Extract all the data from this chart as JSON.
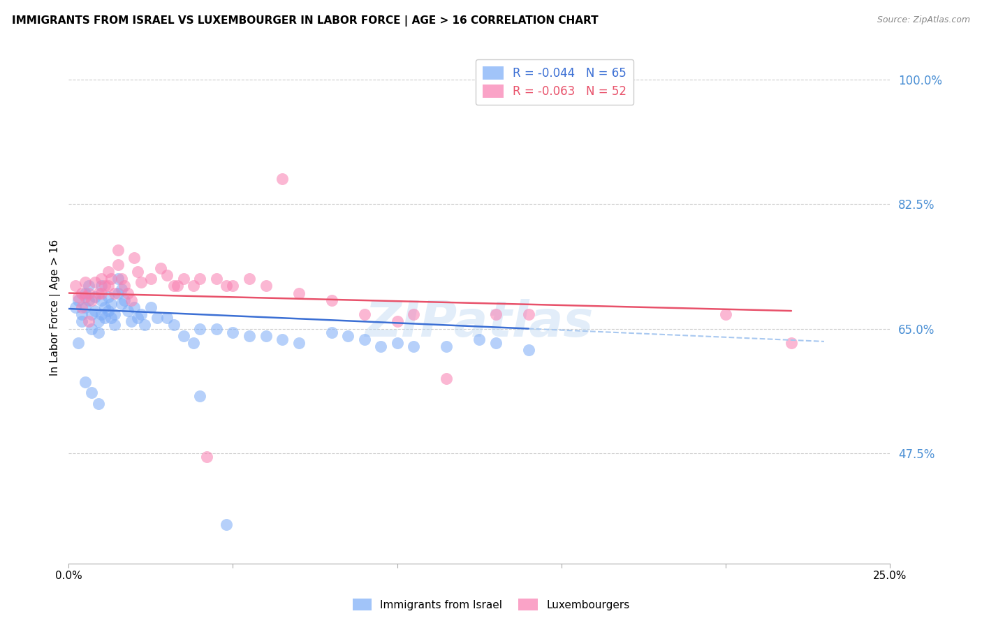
{
  "title": "IMMIGRANTS FROM ISRAEL VS LUXEMBOURGER IN LABOR FORCE | AGE > 16 CORRELATION CHART",
  "source": "Source: ZipAtlas.com",
  "ylabel": "In Labor Force | Age > 16",
  "xlim": [
    0.0,
    0.25
  ],
  "ylim": [
    0.32,
    1.04
  ],
  "yticks": [
    0.475,
    0.65,
    0.825,
    1.0
  ],
  "ytick_labels": [
    "47.5%",
    "65.0%",
    "82.5%",
    "100.0%"
  ],
  "xticks": [
    0.0,
    0.05,
    0.1,
    0.15,
    0.2,
    0.25
  ],
  "xtick_labels": [
    "0.0%",
    "",
    "",
    "",
    "",
    "25.0%"
  ],
  "blue_R": -0.044,
  "blue_N": 65,
  "pink_R": -0.063,
  "pink_N": 52,
  "blue_color": "#7aabf7",
  "pink_color": "#f97db0",
  "blue_line_color": "#3b6fd4",
  "pink_line_color": "#e8516a",
  "dashed_line_color": "#a8c8f0",
  "watermark": "ZIPatlas",
  "blue_scatter_x": [
    0.002,
    0.003,
    0.004,
    0.004,
    0.005,
    0.005,
    0.006,
    0.006,
    0.007,
    0.007,
    0.008,
    0.008,
    0.009,
    0.009,
    0.01,
    0.01,
    0.01,
    0.011,
    0.011,
    0.012,
    0.012,
    0.013,
    0.013,
    0.014,
    0.014,
    0.015,
    0.015,
    0.016,
    0.016,
    0.017,
    0.018,
    0.019,
    0.02,
    0.021,
    0.022,
    0.023,
    0.025,
    0.027,
    0.03,
    0.032,
    0.035,
    0.038,
    0.04,
    0.045,
    0.05,
    0.055,
    0.06,
    0.065,
    0.07,
    0.08,
    0.085,
    0.09,
    0.095,
    0.1,
    0.105,
    0.115,
    0.125,
    0.13,
    0.14,
    0.003,
    0.005,
    0.007,
    0.009,
    0.04,
    0.048
  ],
  "blue_scatter_y": [
    0.68,
    0.69,
    0.67,
    0.66,
    0.7,
    0.68,
    0.71,
    0.69,
    0.67,
    0.65,
    0.695,
    0.675,
    0.66,
    0.645,
    0.71,
    0.69,
    0.67,
    0.68,
    0.665,
    0.695,
    0.675,
    0.685,
    0.665,
    0.67,
    0.655,
    0.72,
    0.7,
    0.705,
    0.685,
    0.69,
    0.675,
    0.66,
    0.68,
    0.665,
    0.67,
    0.655,
    0.68,
    0.665,
    0.665,
    0.655,
    0.64,
    0.63,
    0.65,
    0.65,
    0.645,
    0.64,
    0.64,
    0.635,
    0.63,
    0.645,
    0.64,
    0.635,
    0.625,
    0.63,
    0.625,
    0.625,
    0.635,
    0.63,
    0.62,
    0.63,
    0.575,
    0.56,
    0.545,
    0.555,
    0.375
  ],
  "pink_scatter_x": [
    0.002,
    0.003,
    0.004,
    0.005,
    0.005,
    0.006,
    0.007,
    0.008,
    0.009,
    0.01,
    0.01,
    0.011,
    0.012,
    0.012,
    0.013,
    0.014,
    0.015,
    0.015,
    0.016,
    0.017,
    0.018,
    0.019,
    0.02,
    0.021,
    0.022,
    0.025,
    0.028,
    0.03,
    0.033,
    0.035,
    0.038,
    0.04,
    0.045,
    0.048,
    0.05,
    0.055,
    0.06,
    0.065,
    0.07,
    0.08,
    0.09,
    0.1,
    0.105,
    0.115,
    0.13,
    0.14,
    0.2,
    0.22,
    0.004,
    0.006,
    0.032,
    0.042
  ],
  "pink_scatter_y": [
    0.71,
    0.695,
    0.7,
    0.715,
    0.695,
    0.7,
    0.69,
    0.715,
    0.7,
    0.72,
    0.7,
    0.71,
    0.73,
    0.71,
    0.72,
    0.7,
    0.76,
    0.74,
    0.72,
    0.71,
    0.7,
    0.69,
    0.75,
    0.73,
    0.715,
    0.72,
    0.735,
    0.725,
    0.71,
    0.72,
    0.71,
    0.72,
    0.72,
    0.71,
    0.71,
    0.72,
    0.71,
    0.86,
    0.7,
    0.69,
    0.67,
    0.66,
    0.67,
    0.58,
    0.67,
    0.67,
    0.67,
    0.63,
    0.68,
    0.66,
    0.71,
    0.47
  ],
  "blue_line_x": [
    0.0,
    0.14
  ],
  "blue_line_y": [
    0.678,
    0.65
  ],
  "pink_line_x": [
    0.0,
    0.22
  ],
  "pink_line_y": [
    0.7,
    0.675
  ],
  "dashed_line_x": [
    0.14,
    0.23
  ],
  "dashed_line_y": [
    0.65,
    0.632
  ]
}
